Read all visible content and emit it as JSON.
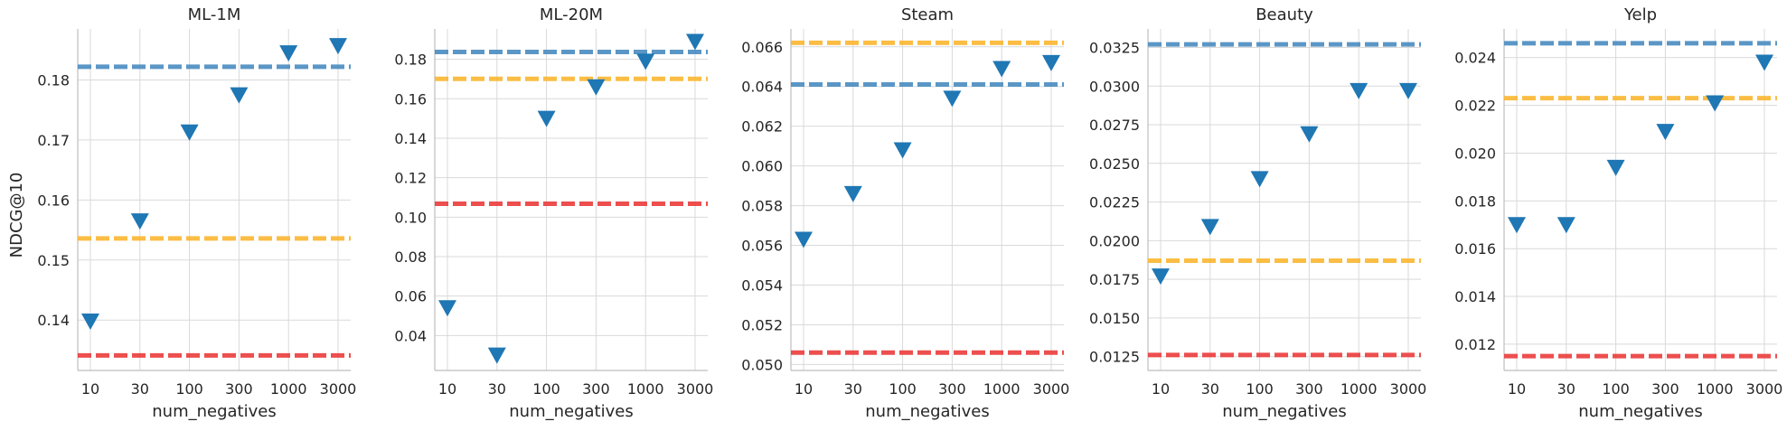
{
  "figure": {
    "y_axis_label": "NDCG@10",
    "x_axis_label": "num_negatives"
  },
  "colors": {
    "marker": "#1f77b4",
    "ref_blue": "#4a8cc0",
    "ref_orange": "#fbb630",
    "ref_red": "#ec3b3b",
    "grid": "#d9d9d9",
    "spine": "#bdbdbd"
  },
  "chart_data": [
    {
      "type": "scatter",
      "title": "ML-1M",
      "xlabel": "num_negatives",
      "ylabel": "NDCG@10",
      "categories": [
        "10",
        "30",
        "100",
        "300",
        "1000",
        "3000"
      ],
      "values": [
        0.1398,
        0.1565,
        0.1713,
        0.1775,
        0.1845,
        0.1857
      ],
      "ylim": [
        0.1316,
        0.1885
      ],
      "yticks": [
        "0.14",
        "0.15",
        "0.16",
        "0.17",
        "0.18"
      ],
      "ytick_values": [
        0.14,
        0.15,
        0.16,
        0.17,
        0.18
      ],
      "reference_lines": [
        {
          "color": "ref_blue",
          "value": 0.1822
        },
        {
          "color": "ref_orange",
          "value": 0.1536
        },
        {
          "color": "ref_red",
          "value": 0.1341
        }
      ]
    },
    {
      "type": "scatter",
      "title": "ML-20M",
      "xlabel": "num_negatives",
      "ylabel": "",
      "categories": [
        "10",
        "30",
        "100",
        "300",
        "1000",
        "3000"
      ],
      "values": [
        0.054,
        0.03,
        0.15,
        0.166,
        0.179,
        0.189
      ],
      "ylim": [
        0.0223,
        0.1954
      ],
      "yticks": [
        "0.04",
        "0.06",
        "0.08",
        "0.10",
        "0.12",
        "0.14",
        "0.16",
        "0.18"
      ],
      "ytick_values": [
        0.04,
        0.06,
        0.08,
        0.1,
        0.12,
        0.14,
        0.16,
        0.18
      ],
      "reference_lines": [
        {
          "color": "ref_blue",
          "value": 0.1837
        },
        {
          "color": "ref_orange",
          "value": 0.1701
        },
        {
          "color": "ref_red",
          "value": 0.1068
        }
      ]
    },
    {
      "type": "scatter",
      "title": "Steam",
      "xlabel": "num_negatives",
      "ylabel": "",
      "categories": [
        "10",
        "30",
        "100",
        "300",
        "1000",
        "3000"
      ],
      "values": [
        0.0563,
        0.0586,
        0.0608,
        0.0634,
        0.0649,
        0.0652
      ],
      "ylim": [
        0.0497,
        0.0669
      ],
      "yticks": [
        "0.050",
        "0.052",
        "0.054",
        "0.056",
        "0.058",
        "0.060",
        "0.062",
        "0.064",
        "0.066"
      ],
      "ytick_values": [
        0.05,
        0.052,
        0.054,
        0.056,
        0.058,
        0.06,
        0.062,
        0.064,
        0.066
      ],
      "reference_lines": [
        {
          "color": "ref_orange",
          "value": 0.0662
        },
        {
          "color": "ref_blue",
          "value": 0.0641
        },
        {
          "color": "ref_red",
          "value": 0.0506
        }
      ]
    },
    {
      "type": "scatter",
      "title": "Beauty",
      "xlabel": "num_negatives",
      "ylabel": "",
      "categories": [
        "10",
        "30",
        "100",
        "300",
        "1000",
        "3000"
      ],
      "values": [
        0.0177,
        0.0209,
        0.024,
        0.0269,
        0.0297,
        0.0297
      ],
      "ylim": [
        0.0116,
        0.0337
      ],
      "yticks": [
        "0.0125",
        "0.0150",
        "0.0175",
        "0.0200",
        "0.0225",
        "0.0250",
        "0.0275",
        "0.0300",
        "0.0325"
      ],
      "ytick_values": [
        0.0125,
        0.015,
        0.0175,
        0.02,
        0.0225,
        0.025,
        0.0275,
        0.03,
        0.0325
      ],
      "reference_lines": [
        {
          "color": "ref_blue",
          "value": 0.0327
        },
        {
          "color": "ref_orange",
          "value": 0.0187
        },
        {
          "color": "ref_red",
          "value": 0.0126
        }
      ]
    },
    {
      "type": "scatter",
      "title": "Yelp",
      "xlabel": "num_negatives",
      "ylabel": "",
      "categories": [
        "10",
        "30",
        "100",
        "300",
        "1000",
        "3000"
      ],
      "values": [
        0.017,
        0.017,
        0.0194,
        0.0209,
        0.0221,
        0.0238
      ],
      "ylim": [
        0.0109,
        0.0252
      ],
      "yticks": [
        "0.012",
        "0.014",
        "0.016",
        "0.018",
        "0.020",
        "0.022",
        "0.024"
      ],
      "ytick_values": [
        0.012,
        0.014,
        0.016,
        0.018,
        0.02,
        0.022,
        0.024
      ],
      "reference_lines": [
        {
          "color": "ref_blue",
          "value": 0.0246
        },
        {
          "color": "ref_orange",
          "value": 0.0223
        },
        {
          "color": "ref_red",
          "value": 0.0115
        }
      ]
    }
  ]
}
